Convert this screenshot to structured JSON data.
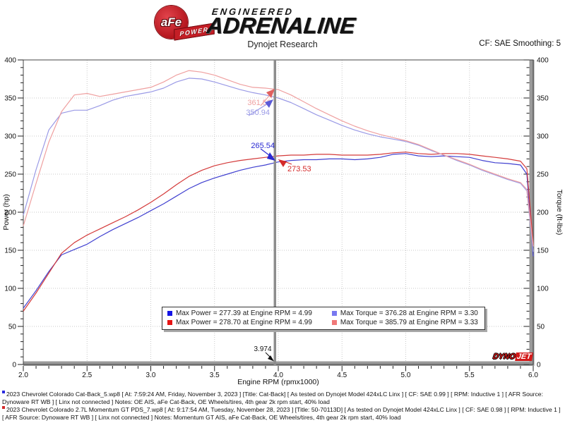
{
  "header": {
    "brand": {
      "circle_text": "aFe",
      "banner_text": "POWER",
      "line1": "ENGINEERED",
      "line2": "ADRENALINE"
    },
    "title": "Dynojet Research",
    "cf_label": "CF: SAE Smoothing: 5"
  },
  "chart_data": {
    "type": "line",
    "xlabel": "Engine RPM (rpmx1000)",
    "ylabel_left": "Power (hp)",
    "ylabel_right": "Torque (ft-lbs)",
    "xlim": [
      2.0,
      6.0
    ],
    "ylim_left": [
      0,
      400
    ],
    "ylim_right": [
      0,
      400
    ],
    "x_tick_labels": [
      "2.0",
      "2.5",
      "3.0",
      "3.5",
      "4.0",
      "4.5",
      "5.0",
      "5.5",
      "6.0"
    ],
    "y_tick_labels": [
      "0",
      "50",
      "100",
      "150",
      "200",
      "250",
      "300",
      "350",
      "400"
    ],
    "grid": "dotted",
    "legend_position": "bottom-center",
    "cursor": {
      "x": 3.974,
      "label": "3.974",
      "power_run1": "265.54",
      "power_run2": "273.53",
      "torque_run1": "350.94",
      "torque_run2": "361.52"
    },
    "series": [
      {
        "name": "Run 1 Power (Cat-Back)",
        "axis": "left",
        "color": "#4040d0",
        "x": [
          2,
          2.1,
          2.2,
          2.3,
          2.4,
          2.5,
          2.6,
          2.7,
          2.8,
          2.9,
          3,
          3.1,
          3.2,
          3.3,
          3.4,
          3.5,
          3.6,
          3.7,
          3.8,
          3.9,
          4,
          4.1,
          4.2,
          4.3,
          4.4,
          4.5,
          4.6,
          4.7,
          4.8,
          4.9,
          5,
          5.1,
          5.2,
          5.3,
          5.4,
          5.5,
          5.6,
          5.7,
          5.8,
          5.9,
          5.95,
          6
        ],
        "values": [
          74,
          97,
          122,
          144,
          151,
          158,
          168,
          177,
          185,
          193,
          202,
          211,
          221,
          231,
          239,
          245,
          250,
          255,
          259,
          262,
          266,
          268,
          269,
          269,
          270,
          270,
          269,
          270,
          272,
          276,
          277,
          274,
          273,
          274,
          273,
          272,
          268,
          265,
          264,
          262,
          250,
          142
        ]
      },
      {
        "name": "Run 2 Power (Momentum GT)",
        "axis": "left",
        "color": "#d43a3a",
        "x": [
          2,
          2.1,
          2.2,
          2.3,
          2.4,
          2.5,
          2.6,
          2.7,
          2.8,
          2.9,
          3,
          3.1,
          3.2,
          3.3,
          3.4,
          3.5,
          3.6,
          3.7,
          3.8,
          3.9,
          4,
          4.1,
          4.2,
          4.3,
          4.4,
          4.5,
          4.6,
          4.7,
          4.8,
          4.9,
          5,
          5.1,
          5.2,
          5.3,
          5.4,
          5.5,
          5.6,
          5.7,
          5.8,
          5.9,
          5.95,
          6
        ],
        "values": [
          70,
          94,
          120,
          146,
          160,
          170,
          178,
          186,
          194,
          203,
          213,
          224,
          236,
          247,
          255,
          261,
          265,
          268,
          270,
          272,
          274,
          275,
          275,
          276,
          276,
          275,
          275,
          275,
          276,
          278,
          279,
          277,
          276,
          277,
          277,
          276,
          274,
          272,
          270,
          267,
          257,
          158
        ]
      },
      {
        "name": "Run 1 Torque (Cat-Back)",
        "axis": "right",
        "color": "#9a9ae6",
        "x": [
          2,
          2.1,
          2.2,
          2.3,
          2.4,
          2.5,
          2.6,
          2.7,
          2.8,
          2.9,
          3,
          3.1,
          3.2,
          3.3,
          3.4,
          3.5,
          3.6,
          3.7,
          3.8,
          3.9,
          4,
          4.1,
          4.2,
          4.3,
          4.4,
          4.5,
          4.6,
          4.7,
          4.8,
          4.9,
          5,
          5.1,
          5.2,
          5.3,
          5.4,
          5.5,
          5.6,
          5.7,
          5.8,
          5.9,
          5.95,
          6
        ],
        "values": [
          196,
          256,
          308,
          330,
          334,
          334,
          340,
          347,
          352,
          355,
          358,
          363,
          371,
          376,
          375,
          371,
          366,
          361,
          357,
          354,
          350,
          344,
          336,
          328,
          321,
          314,
          308,
          303,
          299,
          296,
          293,
          288,
          281,
          275,
          268,
          262,
          255,
          249,
          243,
          238,
          228,
          148
        ]
      },
      {
        "name": "Run 2 Torque (Momentum GT)",
        "axis": "right",
        "color": "#efa0a0",
        "x": [
          2,
          2.1,
          2.2,
          2.3,
          2.4,
          2.5,
          2.6,
          2.7,
          2.8,
          2.9,
          3,
          3.1,
          3.2,
          3.3,
          3.4,
          3.5,
          3.6,
          3.7,
          3.8,
          3.9,
          4,
          4.1,
          4.2,
          4.3,
          4.4,
          4.5,
          4.6,
          4.7,
          4.8,
          4.9,
          5,
          5.1,
          5.2,
          5.3,
          5.4,
          5.5,
          5.6,
          5.7,
          5.8,
          5.9,
          5.95,
          6
        ],
        "values": [
          182,
          238,
          292,
          332,
          354,
          356,
          352,
          355,
          358,
          361,
          364,
          371,
          380,
          386,
          384,
          380,
          374,
          368,
          364,
          363,
          361,
          354,
          345,
          336,
          328,
          320,
          313,
          307,
          302,
          298,
          294,
          289,
          282,
          275,
          269,
          263,
          256,
          250,
          244,
          239,
          230,
          155
        ]
      }
    ],
    "legend": {
      "entries": [
        {
          "swatch": "#1414e6",
          "text": "Max Power = 277.39 at Engine RPM = 4.99"
        },
        {
          "swatch": "#7878f0",
          "text": "Max Torque = 376.28 at Engine RPM = 3.30"
        },
        {
          "swatch": "#e61414",
          "text": "Max Power = 278.70 at Engine RPM = 4.99"
        },
        {
          "swatch": "#f07878",
          "text": "Max Torque = 385.79 at Engine RPM = 3.33"
        }
      ]
    }
  },
  "watermark": {
    "dyno": "DYNO",
    "jet": "JET"
  },
  "footer": {
    "runs": [
      {
        "marker_color": "#2a2ae0",
        "text": "2023 Chevrolet Colorado Cat-Back_5.wp8 [ At: 7:59:24 AM, Friday, November 3, 2023 ] [Title: Cat-Back]  [ As tested on Dynojet Model 424xLC Linx ] [ CF: SAE 0.99 ] [ RPM: Inductive 1 ] [ AFR Source: Dynoware RT WB ] [ Linx not connected ] Notes: OE AIS, aFe Cat-Back, OE Wheels/tires, 4th gear 2k rpm start, 40% load"
      },
      {
        "marker_color": "#d42a2a",
        "text": "2023 Chevrolet Colorado 2.7L Momentum GT PDS_7.wp8 [ At: 9:17:54 AM, Tuesday, November 28, 2023 ] [Title: 50-70113D]  [ As tested on Dynojet Model 424xLC Linx ] [ CF: SAE 0.98 ] [ RPM: Inductive 1 ] [ AFR Source: Dynoware RT WB ] [ Linx not connected ] Notes: Momentum GT AIS, aFe Cat-Back, OE Wheels/tires, 4th gear 2k rpm start, 40% load"
      }
    ]
  }
}
